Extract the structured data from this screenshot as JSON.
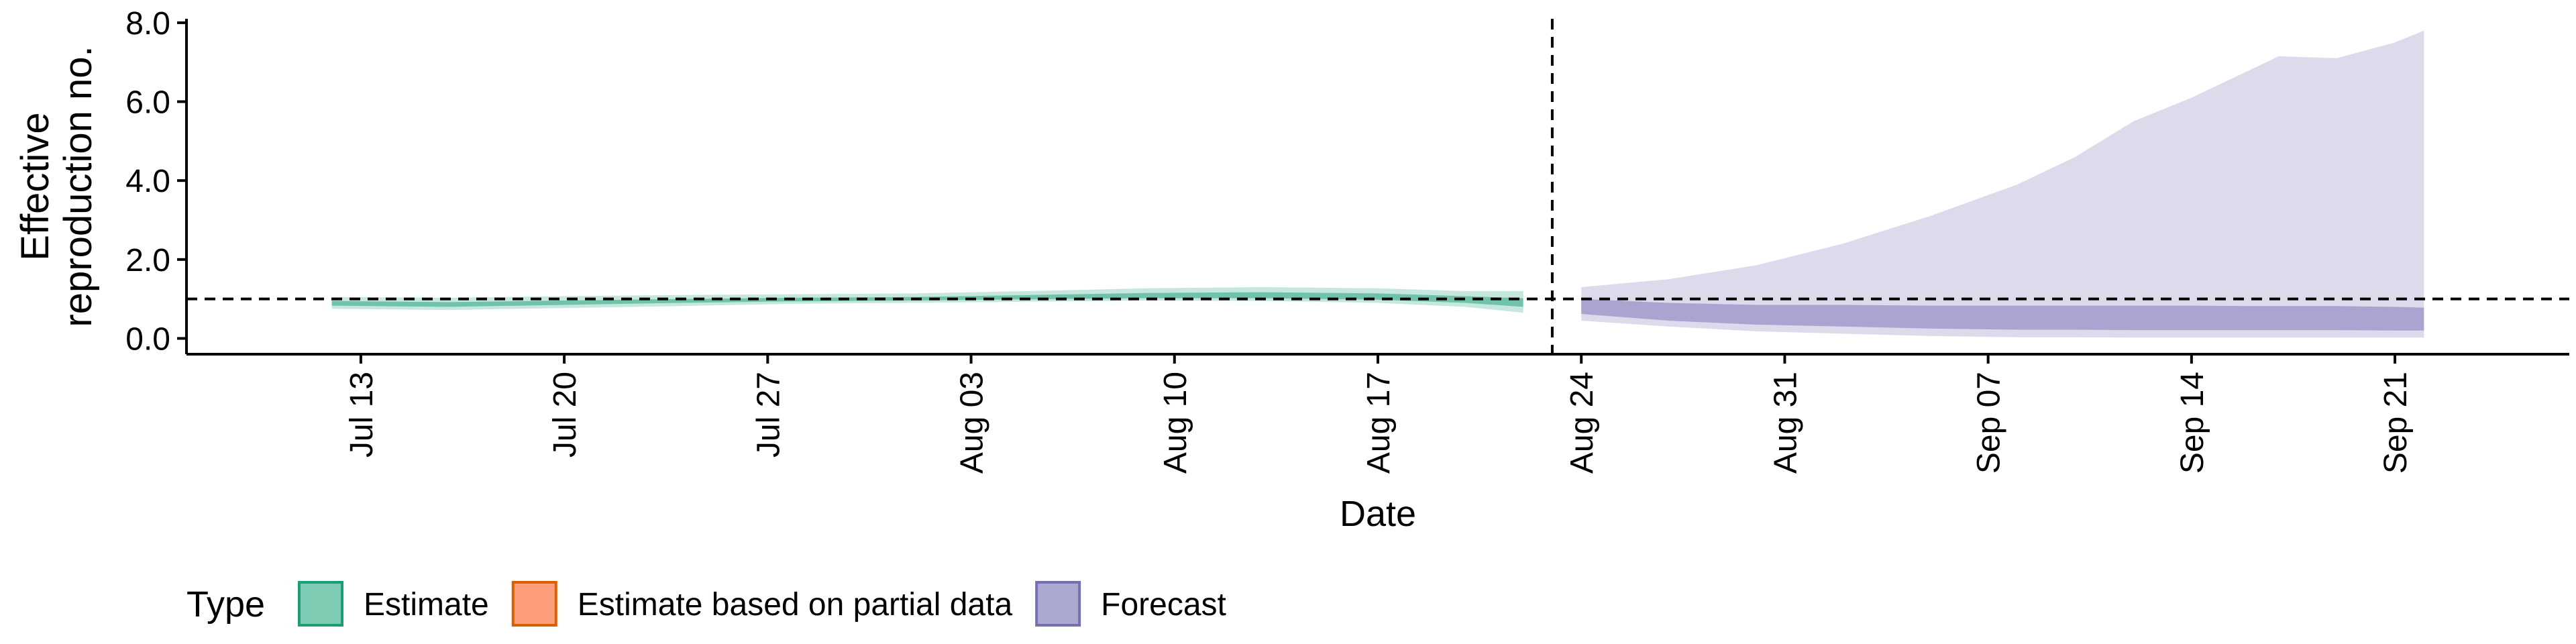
{
  "chart_data": {
    "type": "area",
    "xlabel": "Date",
    "ylabel": [
      "Effective",
      "reproduction no."
    ],
    "ylim": [
      -0.4,
      8.1
    ],
    "yticks": [
      0,
      2,
      4,
      6,
      8
    ],
    "ytick_labels": [
      "0.0",
      "2.0",
      "4.0",
      "6.0",
      "8.0"
    ],
    "xlim": [
      "2020-07-07",
      "2020-09-27"
    ],
    "xticks": [
      "2020-07-13",
      "2020-07-20",
      "2020-07-27",
      "2020-08-03",
      "2020-08-10",
      "2020-08-17",
      "2020-08-24",
      "2020-08-31",
      "2020-09-07",
      "2020-09-14",
      "2020-09-21"
    ],
    "xtick_labels": [
      "Jul 13",
      "Jul 20",
      "Jul 27",
      "Aug 03",
      "Aug 10",
      "Aug 17",
      "Aug 24",
      "Aug 31",
      "Sep 07",
      "Sep 14",
      "Sep 21"
    ],
    "reference_line_y": 1,
    "forecast_start_line_x": "2020-08-23",
    "grid": false,
    "legend": {
      "title": "Type",
      "position": "bottom-left",
      "items": [
        {
          "label": "Estimate",
          "fill": "#66c2a5",
          "stroke": "#1b9e77"
        },
        {
          "label": "Estimate based on partial data",
          "fill": "#fc8d62",
          "stroke": "#d95f02"
        },
        {
          "label": "Forecast",
          "fill": "#9e9ac8",
          "stroke": "#7570b3"
        }
      ]
    },
    "series": [
      {
        "name": "Estimate",
        "color": "#1b9e77",
        "x": [
          "2020-07-12",
          "2020-07-16",
          "2020-07-20",
          "2020-07-24",
          "2020-07-28",
          "2020-08-01",
          "2020-08-05",
          "2020-08-09",
          "2020-08-13",
          "2020-08-17",
          "2020-08-20",
          "2020-08-22"
        ],
        "outer_lower": [
          0.75,
          0.72,
          0.77,
          0.82,
          0.88,
          0.9,
          0.93,
          0.96,
          0.95,
          0.9,
          0.8,
          0.65
        ],
        "outer_upper": [
          1.05,
          1.03,
          1.07,
          1.1,
          1.12,
          1.14,
          1.2,
          1.27,
          1.3,
          1.27,
          1.2,
          1.2
        ],
        "inner_lower": [
          0.83,
          0.8,
          0.85,
          0.9,
          0.94,
          0.96,
          0.99,
          1.02,
          1.02,
          0.98,
          0.9,
          0.8
        ],
        "inner_upper": [
          0.95,
          0.92,
          0.96,
          1.0,
          1.03,
          1.05,
          1.1,
          1.15,
          1.17,
          1.14,
          1.07,
          1.02
        ]
      },
      {
        "name": "Forecast",
        "color": "#7570b3",
        "x": [
          "2020-08-24",
          "2020-08-27",
          "2020-08-30",
          "2020-09-02",
          "2020-09-05",
          "2020-09-08",
          "2020-09-10",
          "2020-09-12",
          "2020-09-14",
          "2020-09-16",
          "2020-09-17",
          "2020-09-19",
          "2020-09-21",
          "2020-09-22"
        ],
        "outer_lower": [
          0.45,
          0.3,
          0.18,
          0.12,
          0.06,
          0.03,
          0.03,
          0.02,
          0.02,
          0.02,
          0.02,
          0.02,
          0.02,
          0.02
        ],
        "outer_upper": [
          1.3,
          1.5,
          1.85,
          2.4,
          3.1,
          3.9,
          4.6,
          5.5,
          6.1,
          6.8,
          7.15,
          7.1,
          7.5,
          7.8
        ],
        "inner_lower": [
          0.62,
          0.45,
          0.35,
          0.3,
          0.25,
          0.22,
          0.22,
          0.21,
          0.21,
          0.21,
          0.21,
          0.21,
          0.2,
          0.2
        ],
        "inner_upper": [
          1.0,
          0.9,
          0.85,
          0.85,
          0.83,
          0.83,
          0.83,
          0.83,
          0.83,
          0.82,
          0.82,
          0.82,
          0.8,
          0.78
        ]
      }
    ]
  }
}
